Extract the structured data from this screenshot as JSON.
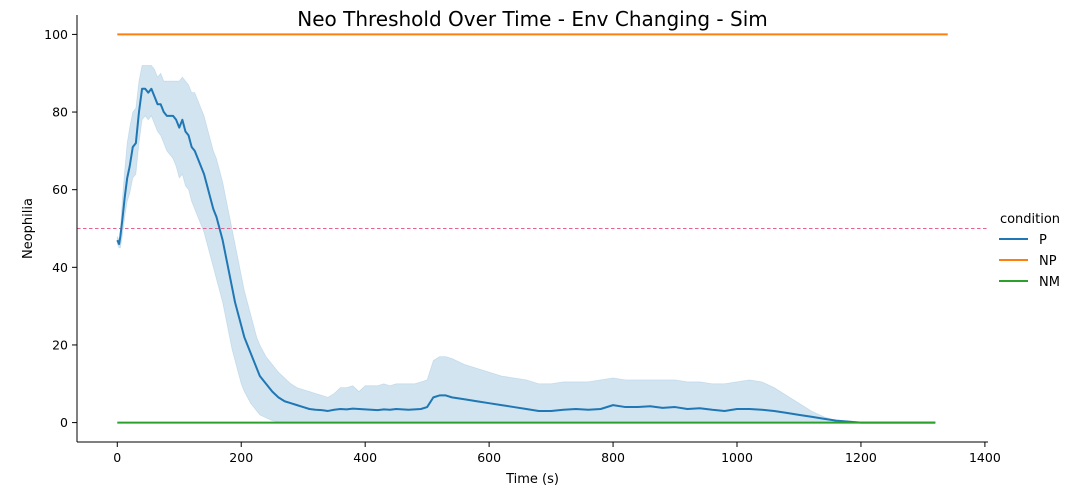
{
  "chart_data": {
    "type": "line",
    "title": "Neo Threshold Over Time - Env Changing - Sim",
    "xlabel": "Time (s)",
    "ylabel": "Neophilia",
    "xlim": [
      -65,
      1405
    ],
    "ylim": [
      -5,
      105
    ],
    "xticks": [
      0,
      200,
      400,
      600,
      800,
      1000,
      1200,
      1400
    ],
    "yticks": [
      0,
      20,
      40,
      60,
      80,
      100
    ],
    "grid": false,
    "reference_line": {
      "y": 50,
      "style": "dashed",
      "color": "#e8638b"
    },
    "legend": {
      "title": "condition",
      "placement": "right"
    },
    "series": [
      {
        "name": "P",
        "color": "#1f77b4",
        "band_color": "#1f77b4",
        "x": [
          0,
          3,
          5,
          8,
          12,
          16,
          20,
          25,
          30,
          35,
          40,
          45,
          50,
          55,
          60,
          65,
          70,
          75,
          80,
          85,
          90,
          95,
          100,
          105,
          110,
          115,
          120,
          125,
          130,
          135,
          140,
          145,
          150,
          155,
          160,
          165,
          170,
          175,
          180,
          185,
          190,
          195,
          200,
          205,
          210,
          215,
          220,
          225,
          230,
          240,
          250,
          260,
          270,
          280,
          290,
          300,
          310,
          320,
          330,
          340,
          350,
          360,
          370,
          380,
          390,
          400,
          410,
          420,
          430,
          440,
          450,
          460,
          470,
          480,
          490,
          500,
          510,
          520,
          530,
          540,
          560,
          580,
          600,
          620,
          640,
          660,
          680,
          700,
          720,
          740,
          760,
          780,
          800,
          820,
          840,
          860,
          880,
          900,
          920,
          940,
          960,
          980,
          1000,
          1020,
          1040,
          1060,
          1080,
          1100,
          1120,
          1140,
          1160,
          1200,
          1250,
          1300,
          1320
        ],
        "y": [
          47,
          46,
          48,
          52,
          58,
          63,
          66,
          71,
          72,
          80,
          86,
          86,
          85,
          86,
          84,
          82,
          82,
          80,
          79,
          79,
          79,
          78,
          76,
          78,
          75,
          74,
          71,
          70,
          68,
          66,
          64,
          61,
          58,
          55,
          53,
          50,
          47,
          43,
          39,
          35,
          31,
          28,
          25,
          22,
          20,
          18,
          16,
          14,
          12,
          10,
          8,
          6.5,
          5.5,
          5,
          4.5,
          4,
          3.5,
          3.3,
          3.2,
          3,
          3.3,
          3.5,
          3.4,
          3.6,
          3.5,
          3.4,
          3.3,
          3.2,
          3.4,
          3.3,
          3.5,
          3.4,
          3.3,
          3.4,
          3.5,
          4,
          6.5,
          7,
          7,
          6.5,
          6,
          5.5,
          5,
          4.5,
          4,
          3.5,
          3,
          3,
          3.3,
          3.5,
          3.3,
          3.5,
          4.5,
          4,
          4,
          4.2,
          3.8,
          4,
          3.5,
          3.7,
          3.3,
          3,
          3.5,
          3.5,
          3.3,
          3,
          2.5,
          2,
          1.5,
          1,
          0.5,
          0,
          0,
          0,
          0
        ],
        "lower": [
          46,
          45,
          45,
          48,
          53,
          57,
          59,
          63,
          64,
          72,
          78,
          79,
          78,
          79,
          77,
          75,
          74,
          72,
          70,
          69,
          68,
          66,
          63,
          64,
          61,
          60,
          57,
          55,
          53,
          51,
          49,
          46,
          43,
          40,
          37,
          34,
          31,
          27,
          23,
          19,
          16,
          13,
          10,
          8,
          6.5,
          5,
          4,
          3,
          2,
          1.2,
          0.5,
          0.2,
          0,
          0,
          0,
          0,
          0,
          0,
          0,
          0,
          0,
          0,
          0,
          0,
          0,
          0,
          0,
          0,
          0,
          0,
          0,
          0,
          0,
          0,
          0,
          0,
          0,
          0,
          0,
          0,
          0,
          0,
          0,
          0,
          0,
          0,
          0,
          0,
          0,
          0,
          0,
          0,
          0,
          0,
          0,
          0,
          0,
          0,
          0,
          0,
          0,
          0,
          0,
          0,
          0,
          0,
          0,
          0,
          0,
          0,
          0,
          0,
          0,
          0,
          0
        ],
        "upper": [
          48,
          47,
          50,
          57,
          65,
          72,
          76,
          80,
          81,
          88,
          92,
          92,
          92,
          92,
          91,
          89,
          90,
          88,
          88,
          88,
          88,
          88,
          88,
          89,
          88,
          87,
          85,
          85,
          83,
          81,
          79,
          76,
          73,
          70,
          68,
          65,
          62,
          58,
          54,
          50,
          46,
          42,
          38,
          34,
          31,
          28,
          25,
          22,
          20,
          17,
          15,
          13,
          11.5,
          10,
          9,
          8.5,
          8,
          7.5,
          7,
          6.5,
          7.5,
          9,
          9,
          9.5,
          8,
          9.5,
          9.5,
          9.5,
          10,
          9.5,
          10,
          10,
          10,
          10,
          10.5,
          11,
          16,
          17,
          17,
          16.5,
          15,
          14,
          13,
          12,
          11.5,
          11,
          10,
          10,
          10.5,
          10.5,
          10.5,
          11,
          11.5,
          11,
          11,
          11,
          11,
          11,
          10.5,
          10.5,
          10,
          10,
          10.5,
          11,
          10.5,
          9,
          7,
          5,
          3,
          1.5,
          0.5,
          0,
          0,
          0,
          0
        ]
      },
      {
        "name": "NP",
        "color": "#ff7f0e",
        "x": [
          0,
          1340
        ],
        "y": [
          100,
          100
        ]
      },
      {
        "name": "NM",
        "color": "#2ca02c",
        "x": [
          0,
          1320
        ],
        "y": [
          0,
          0
        ]
      }
    ]
  }
}
